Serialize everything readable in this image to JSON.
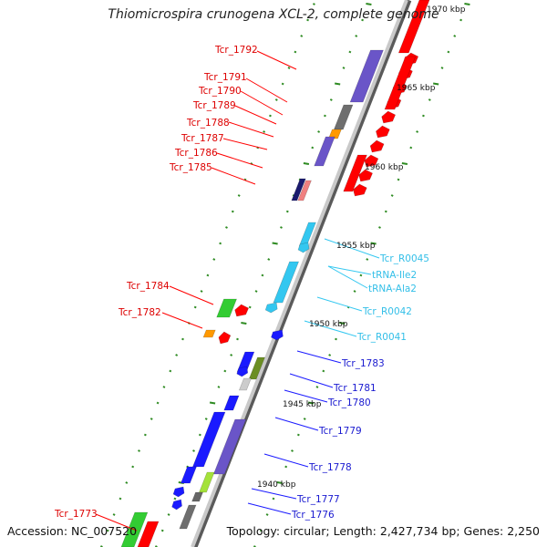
{
  "title": "Thiomicrospira crunogena XCL-2, complete genome",
  "accession": "Accession: NC_007520",
  "summary": "Topology: circular; Length: 2,427,734 bp; Genes: 2,250",
  "scale_ticks": [
    "1940 kbp",
    "1945 kbp",
    "1950 kbp",
    "1955 kbp",
    "1960 kbp",
    "1965 kbp",
    "1970 kbp"
  ],
  "colors": {
    "backbone": "#8a8a8a",
    "tick_green": "#2e8b22",
    "red": "#ff0000",
    "blue": "#1a1aff",
    "cyan": "#33c7f0",
    "purple": "#6a55c8",
    "olive": "#6b8e23",
    "lime": "#a4e23a",
    "green": "#33cc33",
    "orange": "#ff9900",
    "grey": "#6e6e6e",
    "navy": "#1a1a6e",
    "salmon": "#f08080"
  },
  "labels": {
    "left": [
      {
        "text": "Tcr_1792"
      },
      {
        "text": "Tcr_1791"
      },
      {
        "text": "Tcr_1790"
      },
      {
        "text": "Tcr_1789"
      },
      {
        "text": "Tcr_1788"
      },
      {
        "text": "Tcr_1787"
      },
      {
        "text": "Tcr_1786"
      },
      {
        "text": "Tcr_1785"
      },
      {
        "text": "Tcr_1784"
      },
      {
        "text": "Tcr_1782"
      },
      {
        "text": "Tcr_1773"
      }
    ],
    "right": [
      {
        "text": "Tcr_R0045"
      },
      {
        "text": "tRNA-Ile2"
      },
      {
        "text": "tRNA-Ala2"
      },
      {
        "text": "Tcr_R0042"
      },
      {
        "text": "Tcr_R0041"
      },
      {
        "text": "Tcr_1783"
      },
      {
        "text": "Tcr_1781"
      },
      {
        "text": "Tcr_1780"
      },
      {
        "text": "Tcr_1779"
      },
      {
        "text": "Tcr_1778"
      },
      {
        "text": "Tcr_1777"
      },
      {
        "text": "Tcr_1776"
      }
    ]
  }
}
